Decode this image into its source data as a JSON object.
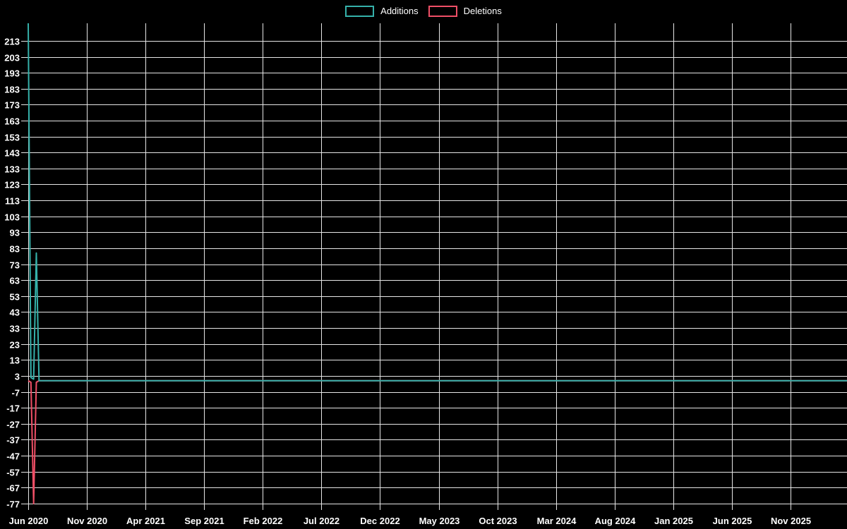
{
  "colors": {
    "background": "#000000",
    "grid": "#e6e6e6",
    "text": "#ffffff",
    "additions": "#35b1aa",
    "deletions": "#ef4f66"
  },
  "legend": {
    "items": [
      {
        "label": "Additions",
        "color": "#35b1aa"
      },
      {
        "label": "Deletions",
        "color": "#ef4f66"
      }
    ]
  },
  "chart_data": {
    "type": "line",
    "title": "",
    "xlabel": "",
    "ylabel": "",
    "grid": true,
    "legend_position": "top-center",
    "x_tick_labels": [
      "Jun 2020",
      "Nov 2020",
      "Apr 2021",
      "Sep 2021",
      "Feb 2022",
      "Jul 2022",
      "Dec 2022",
      "May 2023",
      "Oct 2023",
      "Mar 2024",
      "Aug 2024",
      "Jan 2025",
      "Jun 2025",
      "Nov 2025"
    ],
    "y_ticks": [
      213,
      203,
      193,
      183,
      173,
      163,
      153,
      143,
      133,
      123,
      113,
      103,
      93,
      83,
      73,
      63,
      53,
      43,
      33,
      23,
      13,
      3,
      -7,
      -17,
      -27,
      -37,
      -47,
      -57,
      -67,
      -77
    ],
    "ylim": [
      -81,
      224
    ],
    "x_unit": "week",
    "series": [
      {
        "name": "Additions",
        "color": "#35b1aa",
        "points": [
          [
            0,
            224
          ],
          [
            1,
            2
          ],
          [
            2,
            1
          ],
          [
            3,
            80
          ],
          [
            4,
            0
          ]
        ],
        "tail_value": 0,
        "note": "peak at first week clipped at top of plot (>213); all later weeks are 0 through Nov 2025"
      },
      {
        "name": "Deletions",
        "color": "#ef4f66",
        "points": [
          [
            0,
            0
          ],
          [
            1,
            -1
          ],
          [
            2,
            -77
          ],
          [
            3,
            -1
          ],
          [
            4,
            0
          ]
        ],
        "tail_value": 0,
        "note": "single deep drop to -77 in an early week; all later weeks are 0 through Nov 2025"
      }
    ]
  }
}
